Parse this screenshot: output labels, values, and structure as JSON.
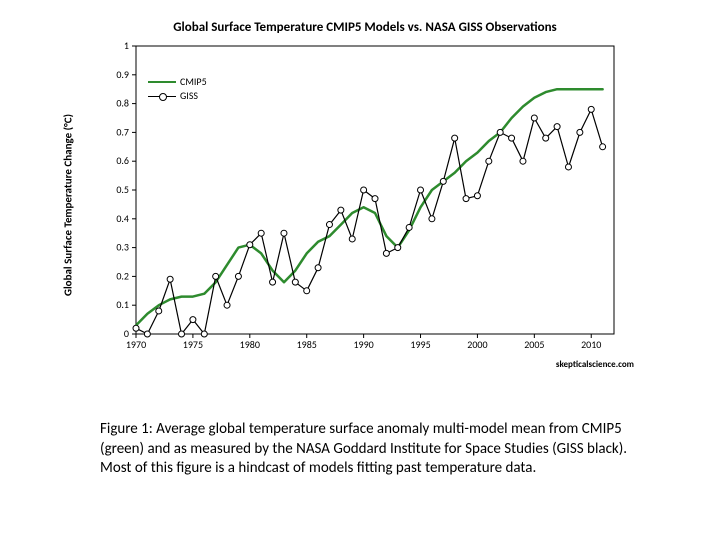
{
  "chart": {
    "type": "line",
    "title": "Global Surface Temperature CMIP5 Models vs. NASA GISS Observations",
    "title_fontsize": 13,
    "ylabel": "Global Surface Temperature Change (°C)",
    "ylabel_fontsize": 11,
    "credit": "skepticalscience.com",
    "background_color": "#ffffff",
    "axis_color": "#000000",
    "grid": false,
    "xlim": [
      1970,
      2012
    ],
    "ylim": [
      0,
      1
    ],
    "xticks": [
      1970,
      1975,
      1980,
      1985,
      1990,
      1995,
      2000,
      2005,
      2010
    ],
    "yticks": [
      0,
      0.1,
      0.2,
      0.3,
      0.4,
      0.5,
      0.6,
      0.7,
      0.8,
      0.9,
      1
    ],
    "tick_fontsize": 10,
    "series": [
      {
        "name": "CMIP5",
        "color": "#2e8b2e",
        "line_width": 2.5,
        "marker": "none",
        "x": [
          1970,
          1971,
          1972,
          1973,
          1974,
          1975,
          1976,
          1977,
          1978,
          1979,
          1980,
          1981,
          1982,
          1983,
          1984,
          1985,
          1986,
          1987,
          1988,
          1989,
          1990,
          1991,
          1992,
          1993,
          1994,
          1995,
          1996,
          1997,
          1998,
          1999,
          2000,
          2001,
          2002,
          2003,
          2004,
          2005,
          2006,
          2007,
          2008,
          2009,
          2010,
          2011
        ],
        "y": [
          0.03,
          0.07,
          0.1,
          0.12,
          0.13,
          0.13,
          0.14,
          0.18,
          0.24,
          0.3,
          0.31,
          0.28,
          0.22,
          0.18,
          0.22,
          0.28,
          0.32,
          0.34,
          0.38,
          0.42,
          0.44,
          0.42,
          0.34,
          0.3,
          0.36,
          0.44,
          0.5,
          0.53,
          0.56,
          0.6,
          0.63,
          0.67,
          0.7,
          0.75,
          0.79,
          0.82,
          0.84,
          0.85,
          0.85,
          0.85,
          0.85,
          0.85
        ]
      },
      {
        "name": "GISS",
        "color": "#000000",
        "line_width": 1.2,
        "marker": "circle",
        "marker_size": 3,
        "marker_fill": "#ffffff",
        "x": [
          1970,
          1971,
          1972,
          1973,
          1974,
          1975,
          1976,
          1977,
          1978,
          1979,
          1980,
          1981,
          1982,
          1983,
          1984,
          1985,
          1986,
          1987,
          1988,
          1989,
          1990,
          1991,
          1992,
          1993,
          1994,
          1995,
          1996,
          1997,
          1998,
          1999,
          2000,
          2001,
          2002,
          2003,
          2004,
          2005,
          2006,
          2007,
          2008,
          2009,
          2010,
          2011
        ],
        "y": [
          0.02,
          0.0,
          0.08,
          0.19,
          0.0,
          0.05,
          0.0,
          0.2,
          0.1,
          0.2,
          0.31,
          0.35,
          0.18,
          0.35,
          0.18,
          0.15,
          0.23,
          0.38,
          0.43,
          0.33,
          0.5,
          0.47,
          0.28,
          0.3,
          0.37,
          0.5,
          0.4,
          0.53,
          0.68,
          0.47,
          0.48,
          0.6,
          0.7,
          0.68,
          0.6,
          0.75,
          0.68,
          0.72,
          0.58,
          0.7,
          0.78,
          0.65
        ]
      }
    ],
    "legend": {
      "items": [
        "CMIP5",
        "GISS"
      ],
      "position": "upper-left",
      "fontsize": 10
    }
  },
  "caption": "Figure 1: Average global temperature surface anomaly multi-model mean from CMIP5 (green) and as measured by the NASA Goddard Institute for Space Studies (GISS black).  Most of this figure is a hindcast of models fitting past temperature data."
}
